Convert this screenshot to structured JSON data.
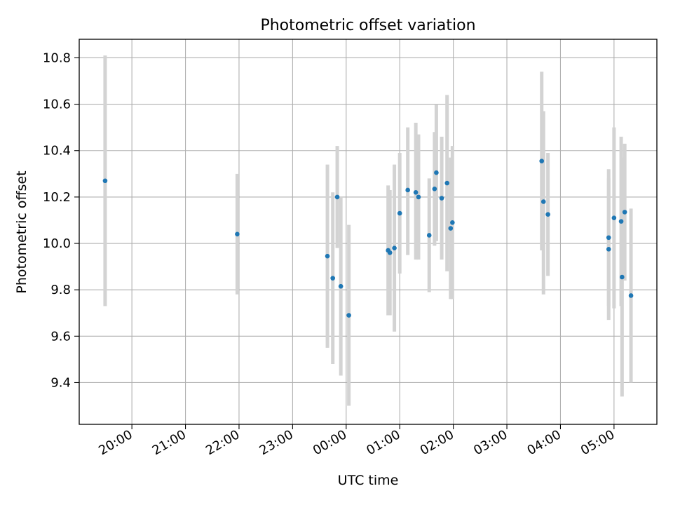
{
  "chart_data": {
    "type": "scatter",
    "title": "Photometric offset variation",
    "xlabel": "UTC time",
    "ylabel": "Photometric offset",
    "x_tick_labels": [
      "20:00",
      "21:00",
      "22:00",
      "23:00",
      "00:00",
      "01:00",
      "02:00",
      "03:00",
      "04:00",
      "05:00"
    ],
    "y_tick_labels": [
      "9.4",
      "9.6",
      "9.8",
      "10.0",
      "10.2",
      "10.4",
      "10.6",
      "10.8"
    ],
    "y_ticks": [
      9.4,
      9.6,
      9.8,
      10.0,
      10.2,
      10.4,
      10.6,
      10.8
    ],
    "xlim": [
      "19:01",
      "05:48"
    ],
    "ylim": [
      9.22,
      10.88
    ],
    "grid": true,
    "point_color": "#1f77b4",
    "errorbar_color": "#d3d3d3",
    "points": [
      {
        "x": "19:30",
        "y": 10.27,
        "lo": 9.73,
        "hi": 10.81
      },
      {
        "x": "21:58",
        "y": 10.04,
        "lo": 9.78,
        "hi": 10.3
      },
      {
        "x": "23:39",
        "y": 9.945,
        "lo": 9.55,
        "hi": 10.34
      },
      {
        "x": "23:45",
        "y": 9.85,
        "lo": 9.48,
        "hi": 10.22
      },
      {
        "x": "23:50",
        "y": 10.2,
        "lo": 9.98,
        "hi": 10.42
      },
      {
        "x": "23:54",
        "y": 9.815,
        "lo": 9.43,
        "hi": 10.2
      },
      {
        "x": "00:03",
        "y": 9.69,
        "lo": 9.3,
        "hi": 10.08
      },
      {
        "x": "00:47",
        "y": 9.97,
        "lo": 9.69,
        "hi": 10.25
      },
      {
        "x": "00:49",
        "y": 9.96,
        "lo": 9.69,
        "hi": 10.23
      },
      {
        "x": "00:54",
        "y": 9.98,
        "lo": 9.62,
        "hi": 10.34
      },
      {
        "x": "01:00",
        "y": 10.13,
        "lo": 9.87,
        "hi": 10.39
      },
      {
        "x": "01:09",
        "y": 10.23,
        "lo": 9.95,
        "hi": 10.5
      },
      {
        "x": "01:18",
        "y": 10.22,
        "lo": 9.93,
        "hi": 10.52
      },
      {
        "x": "01:21",
        "y": 10.2,
        "lo": 9.93,
        "hi": 10.47
      },
      {
        "x": "01:33",
        "y": 10.035,
        "lo": 9.79,
        "hi": 10.28
      },
      {
        "x": "01:39",
        "y": 10.235,
        "lo": 9.99,
        "hi": 10.48
      },
      {
        "x": "01:41",
        "y": 10.305,
        "lo": 10.01,
        "hi": 10.6
      },
      {
        "x": "01:47",
        "y": 10.195,
        "lo": 9.93,
        "hi": 10.46
      },
      {
        "x": "01:53",
        "y": 10.26,
        "lo": 9.88,
        "hi": 10.64
      },
      {
        "x": "01:57",
        "y": 10.065,
        "lo": 9.76,
        "hi": 10.37
      },
      {
        "x": "01:59",
        "y": 10.09,
        "lo": 9.76,
        "hi": 10.42
      },
      {
        "x": "03:39",
        "y": 10.355,
        "lo": 9.97,
        "hi": 10.74
      },
      {
        "x": "03:41",
        "y": 10.18,
        "lo": 9.78,
        "hi": 10.57
      },
      {
        "x": "03:46",
        "y": 10.125,
        "lo": 9.86,
        "hi": 10.39
      },
      {
        "x": "04:54",
        "y": 10.025,
        "lo": 9.73,
        "hi": 10.32
      },
      {
        "x": "04:54",
        "y": 9.975,
        "lo": 9.67,
        "hi": 10.28
      },
      {
        "x": "05:00",
        "y": 10.11,
        "lo": 9.72,
        "hi": 10.5
      },
      {
        "x": "05:08",
        "y": 10.095,
        "lo": 9.73,
        "hi": 10.46
      },
      {
        "x": "05:09",
        "y": 9.855,
        "lo": 9.34,
        "hi": 10.37
      },
      {
        "x": "05:12",
        "y": 10.135,
        "lo": 9.84,
        "hi": 10.43
      },
      {
        "x": "05:19",
        "y": 9.775,
        "lo": 9.4,
        "hi": 10.15
      }
    ]
  }
}
